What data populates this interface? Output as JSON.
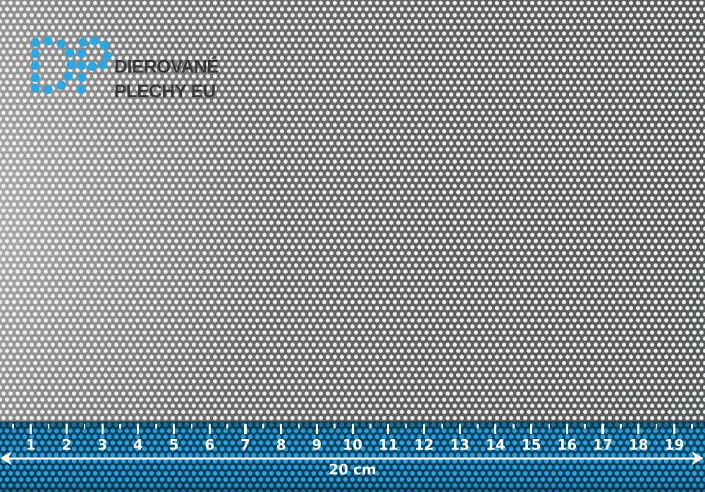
{
  "logo": {
    "line1": "DIEROVANÉ",
    "line2": "PLECHY EU",
    "dot_color": "#2ea7e0",
    "text_color": "rgba(44,44,44,0.9)",
    "dot_radius": 6.5,
    "d_dots": [
      [
        50,
        60
      ],
      [
        68,
        58
      ],
      [
        87,
        62
      ],
      [
        99,
        75
      ],
      [
        101,
        92
      ],
      [
        97,
        108
      ],
      [
        87,
        121
      ],
      [
        68,
        127
      ],
      [
        50,
        125
      ],
      [
        50,
        110
      ],
      [
        50,
        93
      ],
      [
        50,
        76
      ]
    ],
    "p_dots": [
      [
        118,
        60
      ],
      [
        134,
        58
      ],
      [
        148,
        64
      ],
      [
        152,
        79
      ],
      [
        146,
        92
      ],
      [
        131,
        94
      ],
      [
        116,
        76
      ],
      [
        116,
        93
      ],
      [
        116,
        110
      ],
      [
        115,
        127
      ]
    ]
  },
  "material": {
    "description": "perforated metal sheet, round holes in staggered rows",
    "hole_color": "#f1f1ef"
  },
  "ruler": {
    "numbers": [
      "1",
      "2",
      "3",
      "4",
      "5",
      "6",
      "7",
      "8",
      "9",
      "10",
      "11",
      "12",
      "13",
      "14",
      "15",
      "16",
      "17",
      "18",
      "19"
    ],
    "start_x": 43.8,
    "pitch": 50.7,
    "length_label": "20 cm",
    "band_color": "#0d4160",
    "dot_color": "#2aa1da",
    "tick_color": "#ffffff"
  }
}
